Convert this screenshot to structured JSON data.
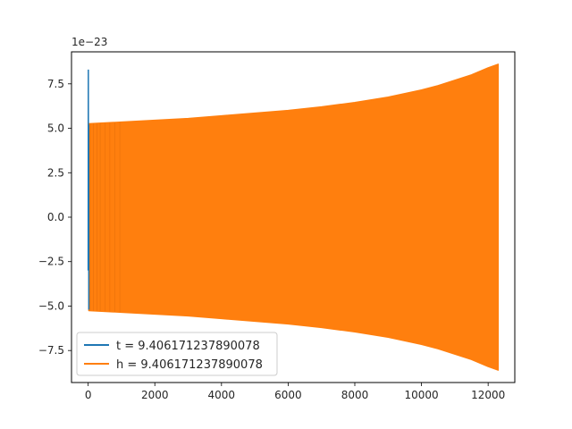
{
  "chart_data": {
    "type": "line",
    "title": "",
    "xlabel": "",
    "ylabel": "",
    "y_offset_label": "1e−23",
    "xlim": [
      -500,
      12800
    ],
    "ylim": [
      -9.3,
      9.3
    ],
    "x_ticks": [
      0,
      2000,
      4000,
      6000,
      8000,
      10000,
      12000
    ],
    "x_tick_labels": [
      "0",
      "2000",
      "4000",
      "6000",
      "8000",
      "10000",
      "12000"
    ],
    "y_ticks": [
      -7.5,
      -5.0,
      -2.5,
      0.0,
      2.5,
      5.0,
      7.5
    ],
    "y_tick_labels": [
      "−7.5",
      "−5.0",
      "−2.5",
      "0.0",
      "2.5",
      "5.0",
      "7.5"
    ],
    "grid": false,
    "legend_position": "lower-left",
    "series": [
      {
        "name": "t = 9.406171237890078",
        "color": "#1f77b4",
        "x": [
          0,
          5,
          10,
          15,
          20
        ],
        "y": [
          -3.0,
          8.3,
          -3.0,
          5.2,
          -5.2
        ]
      },
      {
        "name": "h = 9.406171237890078",
        "color": "#ff7f0e",
        "envelope_x": [
          20,
          1000,
          2000,
          3000,
          4000,
          5000,
          6000,
          7000,
          8000,
          9000,
          10000,
          10500,
          11000,
          11500,
          12000,
          12300
        ],
        "envelope_y": [
          5.25,
          5.35,
          5.45,
          5.55,
          5.7,
          5.85,
          6.0,
          6.2,
          6.45,
          6.75,
          7.15,
          7.4,
          7.7,
          8.0,
          8.4,
          8.6
        ]
      }
    ]
  }
}
